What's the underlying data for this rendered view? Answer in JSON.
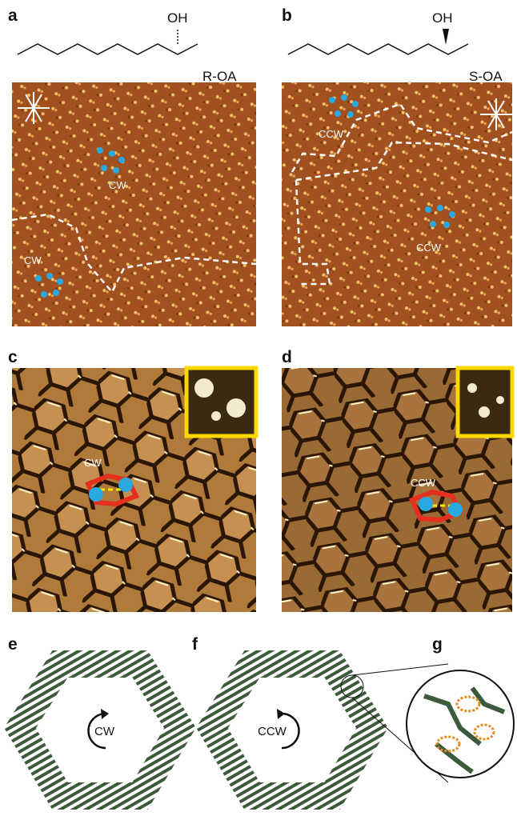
{
  "large_scale": [
    {
      "panel": "a",
      "group": "OH",
      "molecule": "R-OA",
      "domain_labels": [
        "CW",
        "CW"
      ]
    },
    {
      "panel": "b",
      "group": "OH",
      "molecule": "S-OA",
      "domain_labels": [
        "CCW",
        "CCW"
      ]
    }
  ],
  "high_res": [
    {
      "panel": "c",
      "label": "CW"
    },
    {
      "panel": "d",
      "label": "CCW"
    }
  ],
  "models": [
    {
      "panel": "e",
      "label": "CW"
    },
    {
      "panel": "f",
      "label": "CCW"
    },
    {
      "panel": "g"
    }
  ]
}
